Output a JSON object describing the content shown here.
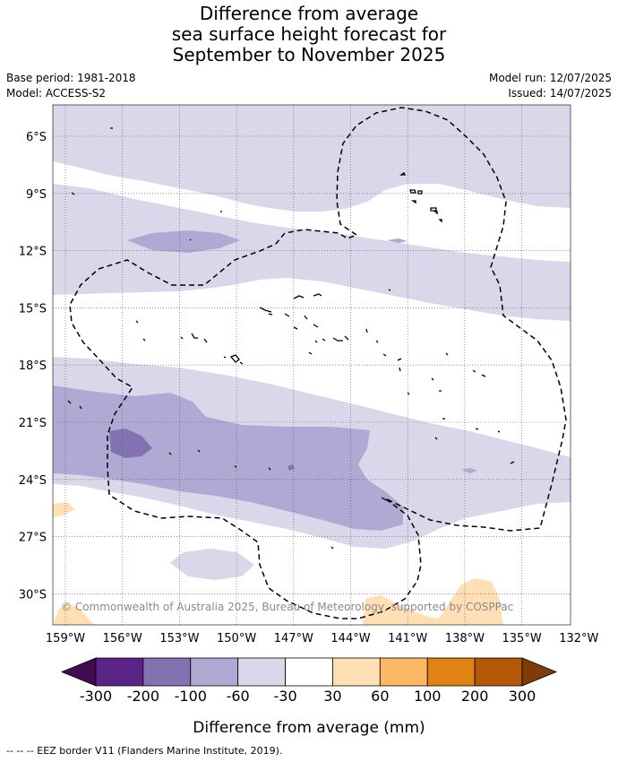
{
  "title": {
    "line1": "Difference from average",
    "line2": "sea surface height forecast for",
    "line3": "September to November 2025"
  },
  "meta": {
    "base_period": "Base period: 1981-2018",
    "model": "Model: ACCESS-S2",
    "model_run": "Model run: 12/07/2025",
    "issued": "Issued: 14/07/2025"
  },
  "map": {
    "lat_labels": [
      "6°S",
      "9°S",
      "12°S",
      "15°S",
      "18°S",
      "21°S",
      "24°S",
      "27°S",
      "30°S"
    ],
    "lon_labels": [
      "159°W",
      "156°W",
      "153°W",
      "150°W",
      "147°W",
      "144°W",
      "141°W",
      "138°W",
      "135°W",
      "132°W"
    ],
    "copyright": "© Commonwealth of Australia 2025, Bureau of Meteorology, supported by COSPPac"
  },
  "colorbar": {
    "ticks": [
      "-300",
      "-200",
      "-100",
      "-60",
      "-30",
      "30",
      "60",
      "100",
      "200",
      "300"
    ],
    "colors": [
      "#3f0d4f",
      "#5b2386",
      "#8372b1",
      "#b0a9d3",
      "#d8d8ea",
      "#ffffff",
      "#ffdfb3",
      "#fdb863",
      "#e08214",
      "#b35806",
      "#7f3b08"
    ],
    "label": "Difference from average (mm)"
  },
  "footnote": "--  --  -- EEZ border V11 (Flanders Marine Institute, 2019)."
}
